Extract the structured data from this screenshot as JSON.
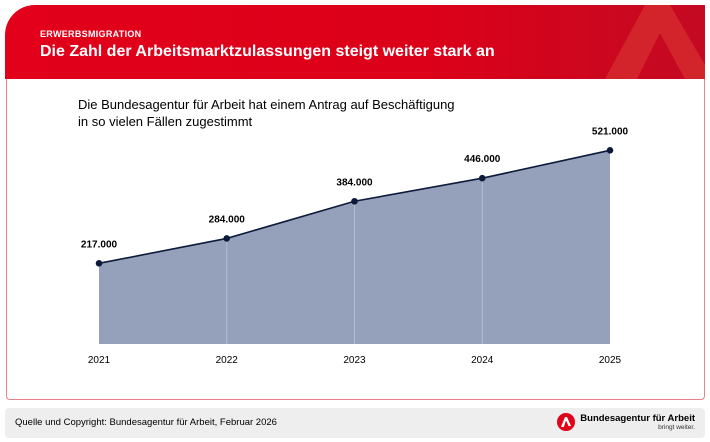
{
  "header": {
    "kicker": "ERWERBSMIGRATION",
    "title": "Die Zahl der Arbeitsmarktzulassungen steigt weiter stark an"
  },
  "subtitle": {
    "line1": "Die Bundesagentur für Arbeit hat einem Antrag auf Beschäftigung",
    "line2": "in so vielen Fällen zugestimmt"
  },
  "chart_data": {
    "type": "area",
    "title": "Die Bundesagentur für Arbeit hat einem Antrag auf Beschäftigung in so vielen Fällen zugestimmt",
    "categories": [
      "2021",
      "2022",
      "2023",
      "2024",
      "2025"
    ],
    "values": [
      217000,
      284000,
      384000,
      446000,
      521000
    ],
    "labels": [
      "217.000",
      "284.000",
      "384.000",
      "446.000",
      "521.000"
    ],
    "ylim": [
      0,
      521000
    ],
    "xlabel": "",
    "ylabel": "",
    "grid": false,
    "colors": {
      "fill": "#95a0ba",
      "line": "#0d1a3a",
      "marker": "#0d1a3a"
    }
  },
  "footer": {
    "source": "Quelle und Copyright: Bundesagentur für Arbeit, Februar 2026",
    "brand_name": "Bundesagentur für Arbeit",
    "brand_tagline": "bringt weiter."
  },
  "colors": {
    "brand_red": "#e2001a"
  }
}
